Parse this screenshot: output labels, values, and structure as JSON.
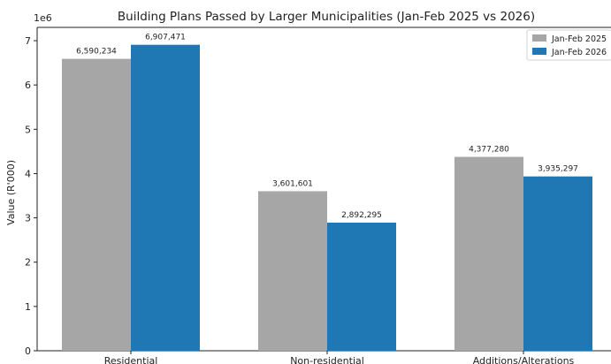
{
  "chart_data": {
    "type": "bar",
    "title": "Building Plans Passed by Larger Municipalities (Jan-Feb 2025 vs 2026)",
    "xlabel": "",
    "ylabel": "Value (R'000)",
    "scale_label": "1e6",
    "ylim": [
      0,
      7300000
    ],
    "yticks": [
      0,
      1,
      2,
      3,
      4,
      5,
      6,
      7
    ],
    "categories": [
      "Residential",
      "Non-residential",
      "Additions/Alterations"
    ],
    "series": [
      {
        "name": "Jan-Feb 2025",
        "color": "#a6a6a6",
        "values": [
          6590234,
          3601601,
          4377280
        ],
        "labels": [
          "6,590,234",
          "3,601,601",
          "4,377,280"
        ]
      },
      {
        "name": "Jan-Feb 2026",
        "color": "#1f77b4",
        "values": [
          6907471,
          2892295,
          3935297
        ],
        "labels": [
          "6,907,471",
          "2,892,295",
          "3,935,297"
        ]
      }
    ],
    "grid": false,
    "legend": "top-right"
  }
}
